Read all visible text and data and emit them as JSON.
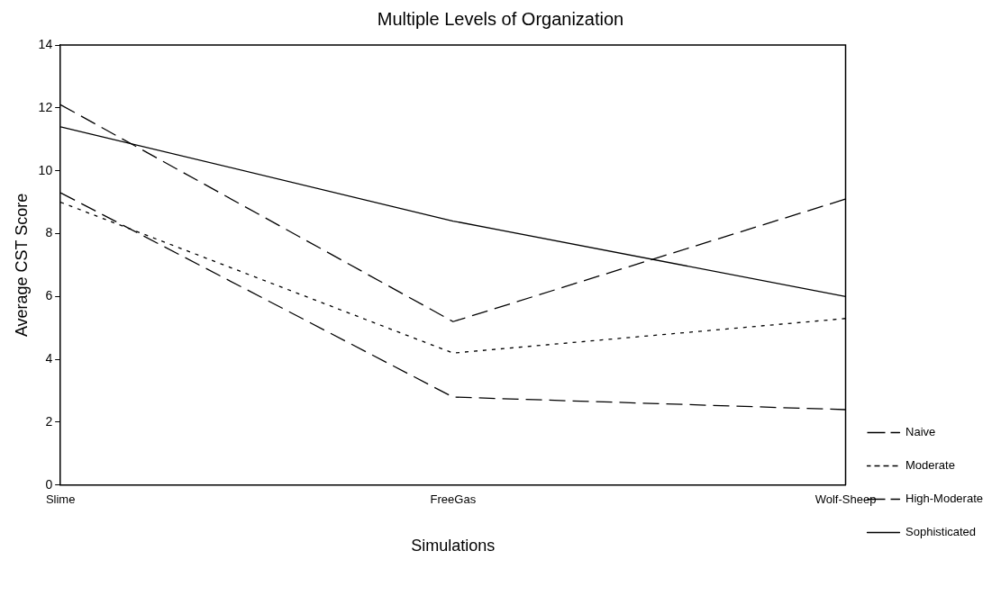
{
  "chart_data": {
    "type": "line",
    "title": "Multiple Levels of Organization",
    "xlabel": "Simulations",
    "ylabel": "Average CST Score",
    "categories": [
      "Slime",
      "FreeGas",
      "Wolf-Sheep"
    ],
    "series": [
      {
        "name": "Naive",
        "color": "#000000",
        "values": [
          9.3,
          2.8,
          2.4
        ],
        "line_style": "dashed"
      },
      {
        "name": "Moderate",
        "color": "#000000",
        "values": [
          9.0,
          4.2,
          5.3
        ],
        "line_style": "dotted"
      },
      {
        "name": "High-Moderate",
        "color": "#000000",
        "values": [
          12.1,
          5.2,
          9.1
        ],
        "line_style": "dashed"
      },
      {
        "name": "Sophisticated",
        "color": "#000000",
        "values": [
          11.4,
          8.4,
          6.0
        ],
        "line_style": "solid"
      }
    ],
    "ylim": [
      0,
      14
    ],
    "yticks": [
      0,
      2,
      4,
      6,
      8,
      10,
      12,
      14
    ],
    "grid": false,
    "legend": "right",
    "marker": "none"
  }
}
